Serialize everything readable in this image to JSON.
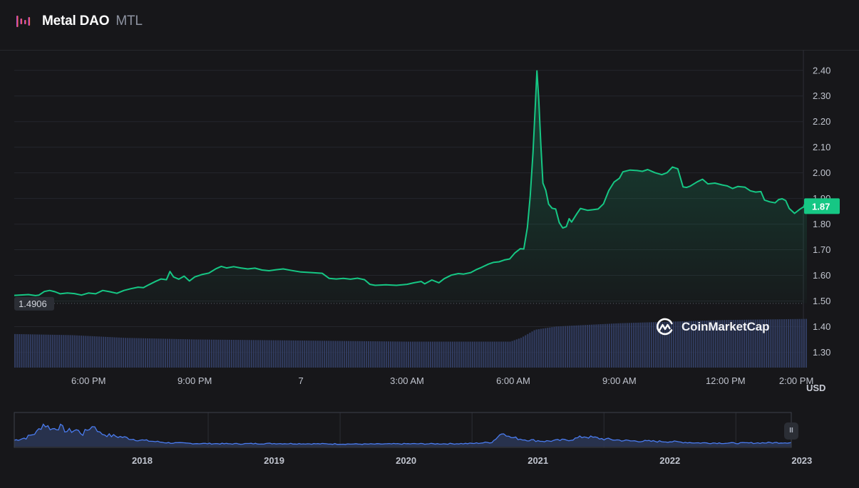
{
  "header": {
    "name": "Metal DAO",
    "symbol": "MTL"
  },
  "colors": {
    "background": "#17171a",
    "price_line": "#16c784",
    "volume_bars": "#3c4b7a",
    "navigator_line": "#4a7cf0"
  },
  "chart_data": [
    {
      "type": "area",
      "title": "",
      "currency": "USD",
      "y_range": [
        1.24,
        2.48
      ],
      "y_ticks": [
        "2.40",
        "2.30",
        "2.20",
        "2.10",
        "2.00",
        "1.90",
        "1.80",
        "1.70",
        "1.60",
        "1.50",
        "1.40",
        "1.30"
      ],
      "y_tick_values": [
        2.4,
        2.3,
        2.2,
        2.1,
        2.0,
        1.9,
        1.8,
        1.7,
        1.6,
        1.5,
        1.4,
        1.3
      ],
      "x_range_hours": [
        15.9,
        38.2
      ],
      "x_ticks": [
        {
          "label": "6:00 PM",
          "hour": 18
        },
        {
          "label": "9:00 PM",
          "hour": 21
        },
        {
          "label": "7",
          "hour": 24
        },
        {
          "label": "3:00 AM",
          "hour": 27
        },
        {
          "label": "6:00 AM",
          "hour": 30
        },
        {
          "label": "9:00 AM",
          "hour": 33
        },
        {
          "label": "12:00 PM",
          "hour": 36
        },
        {
          "label": "2:00 PM",
          "hour": 38
        }
      ],
      "reference_price": "1.4906",
      "reference_value": 1.4906,
      "current_price": "1.87",
      "current_value": 1.87,
      "price_series": [
        [
          16.6,
          1.523
        ],
        [
          16.75,
          1.537
        ],
        [
          16.9,
          1.541
        ],
        [
          17.05,
          1.536
        ],
        [
          17.2,
          1.528
        ],
        [
          17.4,
          1.531
        ],
        [
          17.6,
          1.529
        ],
        [
          17.8,
          1.523
        ],
        [
          18.0,
          1.531
        ],
        [
          18.2,
          1.528
        ],
        [
          18.4,
          1.541
        ],
        [
          18.6,
          1.536
        ],
        [
          18.8,
          1.53
        ],
        [
          19.0,
          1.541
        ],
        [
          19.2,
          1.548
        ],
        [
          19.4,
          1.554
        ],
        [
          19.55,
          1.552
        ],
        [
          19.7,
          1.563
        ],
        [
          19.9,
          1.577
        ],
        [
          20.05,
          1.586
        ],
        [
          20.2,
          1.583
        ],
        [
          20.3,
          1.615
        ],
        [
          20.4,
          1.594
        ],
        [
          20.55,
          1.585
        ],
        [
          20.7,
          1.597
        ],
        [
          20.85,
          1.578
        ],
        [
          21.0,
          1.594
        ],
        [
          21.2,
          1.603
        ],
        [
          21.4,
          1.609
        ],
        [
          21.6,
          1.626
        ],
        [
          21.75,
          1.635
        ],
        [
          21.9,
          1.629
        ],
        [
          22.1,
          1.634
        ],
        [
          22.3,
          1.629
        ],
        [
          22.5,
          1.625
        ],
        [
          22.7,
          1.628
        ],
        [
          22.9,
          1.621
        ],
        [
          23.1,
          1.618
        ],
        [
          23.3,
          1.622
        ],
        [
          23.5,
          1.625
        ],
        [
          23.7,
          1.62
        ],
        [
          24.0,
          1.613
        ],
        [
          24.3,
          1.611
        ],
        [
          24.6,
          1.608
        ],
        [
          24.8,
          1.588
        ],
        [
          25.0,
          1.586
        ],
        [
          25.2,
          1.588
        ],
        [
          25.4,
          1.585
        ],
        [
          25.6,
          1.589
        ],
        [
          25.8,
          1.583
        ],
        [
          25.95,
          1.565
        ],
        [
          26.1,
          1.561
        ],
        [
          26.4,
          1.563
        ],
        [
          26.7,
          1.561
        ],
        [
          27.0,
          1.565
        ],
        [
          27.2,
          1.571
        ],
        [
          27.4,
          1.576
        ],
        [
          27.5,
          1.567
        ],
        [
          27.7,
          1.582
        ],
        [
          27.9,
          1.571
        ],
        [
          28.05,
          1.587
        ],
        [
          28.25,
          1.601
        ],
        [
          28.45,
          1.607
        ],
        [
          28.6,
          1.605
        ],
        [
          28.8,
          1.611
        ],
        [
          28.95,
          1.622
        ],
        [
          29.1,
          1.631
        ],
        [
          29.3,
          1.644
        ],
        [
          29.45,
          1.651
        ],
        [
          29.6,
          1.653
        ],
        [
          29.75,
          1.66
        ],
        [
          29.9,
          1.664
        ],
        [
          30.05,
          1.688
        ],
        [
          30.2,
          1.704
        ],
        [
          30.3,
          1.703
        ],
        [
          30.4,
          1.787
        ],
        [
          30.48,
          1.91
        ],
        [
          30.56,
          2.08
        ],
        [
          30.62,
          2.25
        ],
        [
          30.67,
          2.398
        ],
        [
          30.72,
          2.29
        ],
        [
          30.78,
          2.11
        ],
        [
          30.84,
          1.96
        ],
        [
          30.92,
          1.932
        ],
        [
          31.0,
          1.878
        ],
        [
          31.1,
          1.862
        ],
        [
          31.2,
          1.859
        ],
        [
          31.3,
          1.806
        ],
        [
          31.4,
          1.785
        ],
        [
          31.5,
          1.79
        ],
        [
          31.58,
          1.821
        ],
        [
          31.65,
          1.808
        ],
        [
          31.8,
          1.841
        ],
        [
          31.9,
          1.861
        ],
        [
          32.1,
          1.854
        ],
        [
          32.25,
          1.856
        ],
        [
          32.4,
          1.859
        ],
        [
          32.55,
          1.879
        ],
        [
          32.7,
          1.931
        ],
        [
          32.85,
          1.964
        ],
        [
          33.0,
          1.979
        ],
        [
          33.1,
          2.004
        ],
        [
          33.3,
          2.011
        ],
        [
          33.5,
          2.009
        ],
        [
          33.65,
          2.006
        ],
        [
          33.8,
          2.013
        ],
        [
          34.0,
          2.001
        ],
        [
          34.2,
          1.993
        ],
        [
          34.35,
          2.001
        ],
        [
          34.5,
          2.023
        ],
        [
          34.65,
          2.016
        ],
        [
          34.8,
          1.945
        ],
        [
          34.9,
          1.943
        ],
        [
          35.0,
          1.948
        ],
        [
          35.2,
          1.965
        ],
        [
          35.35,
          1.975
        ],
        [
          35.5,
          1.957
        ],
        [
          35.7,
          1.96
        ],
        [
          35.9,
          1.953
        ],
        [
          36.05,
          1.949
        ],
        [
          36.2,
          1.939
        ],
        [
          36.35,
          1.947
        ],
        [
          36.55,
          1.944
        ],
        [
          36.7,
          1.93
        ],
        [
          36.85,
          1.925
        ],
        [
          37.0,
          1.927
        ],
        [
          37.1,
          1.894
        ],
        [
          37.25,
          1.887
        ],
        [
          37.4,
          1.883
        ],
        [
          37.5,
          1.896
        ],
        [
          37.6,
          1.899
        ],
        [
          37.7,
          1.892
        ],
        [
          37.8,
          1.861
        ],
        [
          37.95,
          1.842
        ],
        [
          38.1,
          1.858
        ],
        [
          38.2,
          1.867
        ],
        [
          38.3,
          1.87
        ]
      ],
      "volume_profile": [
        [
          15.9,
          0.62
        ],
        [
          17.5,
          0.6
        ],
        [
          19.0,
          0.55
        ],
        [
          21.0,
          0.52
        ],
        [
          24.0,
          0.5
        ],
        [
          27.0,
          0.48
        ],
        [
          29.9,
          0.48
        ],
        [
          30.2,
          0.55
        ],
        [
          30.6,
          0.7
        ],
        [
          31.2,
          0.76
        ],
        [
          33.0,
          0.82
        ],
        [
          34.5,
          0.85
        ],
        [
          36.0,
          0.88
        ],
        [
          38.3,
          0.9
        ]
      ]
    },
    {
      "type": "area",
      "title": "",
      "x_ticks": [
        "2018",
        "2019",
        "2020",
        "2021",
        "2022",
        "2023"
      ],
      "x_tick_values": [
        2018,
        2019,
        2020,
        2021,
        2022,
        2023
      ],
      "x_range": [
        2017.53,
        2023.42
      ],
      "y_range": [
        0,
        1
      ],
      "history_series": [
        [
          2017.53,
          0.2
        ],
        [
          2017.62,
          0.28
        ],
        [
          2017.7,
          0.45
        ],
        [
          2017.75,
          0.7
        ],
        [
          2017.82,
          0.55
        ],
        [
          2017.88,
          0.62
        ],
        [
          2017.93,
          0.48
        ],
        [
          2018.0,
          0.52
        ],
        [
          2018.05,
          0.4
        ],
        [
          2018.1,
          0.58
        ],
        [
          2018.14,
          0.65
        ],
        [
          2018.18,
          0.42
        ],
        [
          2018.25,
          0.35
        ],
        [
          2018.35,
          0.3
        ],
        [
          2018.45,
          0.22
        ],
        [
          2018.55,
          0.18
        ],
        [
          2018.7,
          0.12
        ],
        [
          2018.9,
          0.1
        ],
        [
          2019.2,
          0.09
        ],
        [
          2019.5,
          0.1
        ],
        [
          2019.8,
          0.09
        ],
        [
          2020.2,
          0.08
        ],
        [
          2020.5,
          0.09
        ],
        [
          2020.8,
          0.09
        ],
        [
          2021.0,
          0.1
        ],
        [
          2021.15,
          0.14
        ],
        [
          2021.24,
          0.48
        ],
        [
          2021.28,
          0.3
        ],
        [
          2021.4,
          0.22
        ],
        [
          2021.55,
          0.17
        ],
        [
          2021.75,
          0.22
        ],
        [
          2021.85,
          0.32
        ],
        [
          2022.0,
          0.24
        ],
        [
          2022.2,
          0.18
        ],
        [
          2022.5,
          0.16
        ],
        [
          2022.7,
          0.12
        ],
        [
          2023.0,
          0.11
        ],
        [
          2023.2,
          0.12
        ],
        [
          2023.42,
          0.13
        ]
      ]
    }
  ],
  "labels": {
    "usd": "USD",
    "watermark": "CoinMarketCap",
    "pause": "II"
  }
}
